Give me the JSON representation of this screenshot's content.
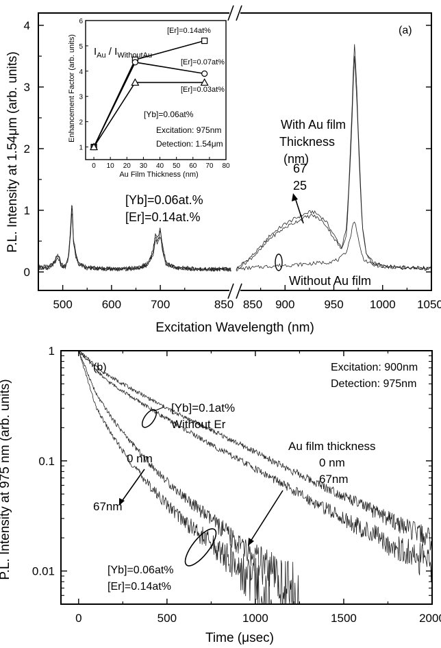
{
  "chart_data": [
    {
      "panel": "(a)",
      "type": "line",
      "xlabel": "Excitation Wavelength (nm)",
      "ylabel": "P.L. Intensity at 1.54μm (arb. units)",
      "xlim_left": [
        450,
        850
      ],
      "xlim_right": [
        850,
        1050
      ],
      "ylim": [
        -0.3,
        4.2
      ],
      "x_ticks": [
        "500",
        "600",
        "700",
        "850",
        "900",
        "950",
        "1000",
        "1050"
      ],
      "y_ticks": [
        "0",
        "1",
        "2",
        "3",
        "4"
      ],
      "series": [
        {
          "name": "67",
          "points_left": [
            [
              450,
              0.1
            ],
            [
              470,
              0.08
            ],
            [
              485,
              0.2
            ],
            [
              490,
              0.3
            ],
            [
              497,
              0.12
            ],
            [
              505,
              0.1
            ],
            [
              512,
              0.28
            ],
            [
              516,
              0.7
            ],
            [
              519,
              1.2
            ],
            [
              522,
              0.55
            ],
            [
              527,
              0.3
            ],
            [
              532,
              0.16
            ],
            [
              550,
              0.08
            ],
            [
              580,
              0.06
            ],
            [
              620,
              0.05
            ],
            [
              660,
              0.08
            ],
            [
              675,
              0.15
            ],
            [
              685,
              0.35
            ],
            [
              690,
              0.62
            ],
            [
              695,
              0.55
            ],
            [
              700,
              0.7
            ],
            [
              705,
              0.4
            ],
            [
              712,
              0.15
            ],
            [
              730,
              0.08
            ],
            [
              760,
              0.06
            ],
            [
              790,
              0.05
            ],
            [
              820,
              0.05
            ],
            [
              845,
              0.05
            ]
          ],
          "points_right": [
            [
              850,
              0.05
            ],
            [
              855,
              0.12
            ],
            [
              862,
              0.2
            ],
            [
              875,
              0.4
            ],
            [
              885,
              0.6
            ],
            [
              900,
              0.78
            ],
            [
              912,
              0.88
            ],
            [
              920,
              0.94
            ],
            [
              928,
              0.98
            ],
            [
              935,
              0.92
            ],
            [
              942,
              0.82
            ],
            [
              950,
              0.6
            ],
            [
              958,
              0.4
            ],
            [
              963,
              0.7
            ],
            [
              966,
              1.6
            ],
            [
              969,
              2.8
            ],
            [
              971,
              3.78
            ],
            [
              973,
              3.2
            ],
            [
              976,
              1.9
            ],
            [
              979,
              0.8
            ],
            [
              983,
              0.3
            ],
            [
              990,
              0.15
            ],
            [
              1000,
              0.1
            ],
            [
              1025,
              0.07
            ],
            [
              1050,
              0.06
            ]
          ]
        },
        {
          "name": "25",
          "points_left": [
            [
              450,
              0.08
            ],
            [
              470,
              0.06
            ],
            [
              485,
              0.18
            ],
            [
              490,
              0.28
            ],
            [
              497,
              0.1
            ],
            [
              505,
              0.08
            ],
            [
              512,
              0.26
            ],
            [
              516,
              0.66
            ],
            [
              519,
              1.12
            ],
            [
              522,
              0.5
            ],
            [
              527,
              0.28
            ],
            [
              532,
              0.14
            ],
            [
              550,
              0.07
            ],
            [
              580,
              0.05
            ],
            [
              620,
              0.04
            ],
            [
              660,
              0.07
            ],
            [
              675,
              0.14
            ],
            [
              685,
              0.32
            ],
            [
              690,
              0.58
            ],
            [
              695,
              0.5
            ],
            [
              700,
              0.66
            ],
            [
              705,
              0.36
            ],
            [
              712,
              0.14
            ],
            [
              730,
              0.07
            ],
            [
              760,
              0.05
            ],
            [
              790,
              0.04
            ],
            [
              820,
              0.04
            ],
            [
              845,
              0.04
            ]
          ],
          "points_right": [
            [
              850,
              0.04
            ],
            [
              855,
              0.1
            ],
            [
              862,
              0.18
            ],
            [
              875,
              0.36
            ],
            [
              885,
              0.55
            ],
            [
              900,
              0.72
            ],
            [
              912,
              0.82
            ],
            [
              920,
              0.88
            ],
            [
              928,
              0.92
            ],
            [
              935,
              0.86
            ],
            [
              942,
              0.76
            ],
            [
              950,
              0.55
            ],
            [
              958,
              0.36
            ],
            [
              963,
              0.62
            ],
            [
              966,
              1.5
            ],
            [
              969,
              2.6
            ],
            [
              971,
              3.55
            ],
            [
              973,
              3.0
            ],
            [
              976,
              1.8
            ],
            [
              979,
              0.75
            ],
            [
              983,
              0.28
            ],
            [
              990,
              0.14
            ],
            [
              1000,
              0.09
            ],
            [
              1025,
              0.06
            ],
            [
              1050,
              0.05
            ]
          ]
        },
        {
          "name": "Without Au film",
          "points_left": [
            [
              450,
              0.07
            ],
            [
              470,
              0.05
            ],
            [
              485,
              0.16
            ],
            [
              490,
              0.24
            ],
            [
              497,
              0.09
            ],
            [
              505,
              0.07
            ],
            [
              512,
              0.22
            ],
            [
              516,
              0.6
            ],
            [
              519,
              1.05
            ],
            [
              522,
              0.46
            ],
            [
              527,
              0.24
            ],
            [
              532,
              0.12
            ],
            [
              550,
              0.06
            ],
            [
              580,
              0.05
            ],
            [
              620,
              0.04
            ],
            [
              660,
              0.06
            ],
            [
              675,
              0.12
            ],
            [
              685,
              0.28
            ],
            [
              690,
              0.52
            ],
            [
              695,
              0.46
            ],
            [
              700,
              0.6
            ],
            [
              705,
              0.32
            ],
            [
              712,
              0.12
            ],
            [
              730,
              0.06
            ],
            [
              760,
              0.05
            ],
            [
              790,
              0.04
            ],
            [
              820,
              0.04
            ],
            [
              845,
              0.04
            ]
          ],
          "points_right": [
            [
              850,
              0.04
            ],
            [
              860,
              0.06
            ],
            [
              875,
              0.08
            ],
            [
              890,
              0.1
            ],
            [
              900,
              0.11
            ],
            [
              915,
              0.12
            ],
            [
              930,
              0.14
            ],
            [
              945,
              0.16
            ],
            [
              955,
              0.2
            ],
            [
              962,
              0.3
            ],
            [
              966,
              0.5
            ],
            [
              969,
              0.72
            ],
            [
              971,
              0.85
            ],
            [
              973,
              0.72
            ],
            [
              976,
              0.45
            ],
            [
              980,
              0.22
            ],
            [
              988,
              0.12
            ],
            [
              1000,
              0.09
            ],
            [
              1025,
              0.07
            ],
            [
              1050,
              0.06
            ]
          ]
        }
      ],
      "annotations": [
        "(a)",
        "With Au film",
        "Thickness",
        "(nm)",
        "67",
        "25",
        "[Yb]=0.06at.%",
        "[Er]=0.14at.%",
        "Without Au film"
      ],
      "inset": {
        "type": "line",
        "title_main": "I",
        "title_sub1": "Au",
        "title_sep": " / I",
        "title_sub2": "WithoutAu",
        "xlabel": "Au Film Thickness (nm)",
        "ylabel": "Enhancement Factor (arb. units)",
        "xlim": [
          -5,
          80
        ],
        "ylim": [
          0.5,
          6
        ],
        "x_ticks": [
          "0",
          "10",
          "20",
          "30",
          "40",
          "50",
          "60",
          "70",
          "80"
        ],
        "y_ticks": [
          "1",
          "2",
          "3",
          "4",
          "5",
          "6"
        ],
        "x": [
          0,
          25,
          67
        ],
        "series": [
          {
            "name": "[Er]=0.14at%",
            "marker": "square",
            "values": [
              1.0,
              4.45,
              5.2
            ]
          },
          {
            "name": "[Er]=0.07at%",
            "marker": "circle",
            "values": [
              1.0,
              4.35,
              3.9
            ]
          },
          {
            "name": "[Er]=0.03at%",
            "marker": "triangle",
            "values": [
              1.0,
              3.55,
              3.55
            ]
          }
        ],
        "annotations": [
          "[Yb]=0.06at%",
          "Excitation: 975nm",
          "Detection: 1.54μm"
        ]
      }
    },
    {
      "panel": "(b)",
      "type": "line",
      "xlabel": "Time (μsec)",
      "ylabel": "P.L. Intensity at 975 nm (arb. units)",
      "xlim": [
        -100,
        2000
      ],
      "ylim": [
        0.005,
        1
      ],
      "yscale": "log",
      "x_ticks": [
        "0",
        "500",
        "1000",
        "1500",
        "2000"
      ],
      "y_ticks": [
        "0.01",
        "0.1",
        "1"
      ],
      "series": [
        {
          "name": "[Yb]=0.1at% Without Er, 0 nm",
          "points": [
            [
              0,
              1.0
            ],
            [
              150,
              0.62
            ],
            [
              300,
              0.45
            ],
            [
              500,
              0.3
            ],
            [
              750,
              0.19
            ],
            [
              1000,
              0.12
            ],
            [
              1250,
              0.075
            ],
            [
              1500,
              0.048
            ],
            [
              1750,
              0.03
            ],
            [
              2000,
              0.019
            ]
          ]
        },
        {
          "name": "[Yb]=0.1at% Without Er, 67nm",
          "points": [
            [
              0,
              1.0
            ],
            [
              150,
              0.55
            ],
            [
              300,
              0.38
            ],
            [
              500,
              0.24
            ],
            [
              750,
              0.14
            ],
            [
              1000,
              0.085
            ],
            [
              1250,
              0.05
            ],
            [
              1500,
              0.03
            ],
            [
              1750,
              0.018
            ],
            [
              2000,
              0.011
            ]
          ]
        },
        {
          "name": "[Yb]=0.06at% [Er]=0.14at%, 0 nm",
          "points": [
            [
              0,
              1.0
            ],
            [
              100,
              0.4
            ],
            [
              200,
              0.23
            ],
            [
              300,
              0.145
            ],
            [
              400,
              0.095
            ],
            [
              500,
              0.065
            ],
            [
              650,
              0.04
            ],
            [
              800,
              0.025
            ],
            [
              950,
              0.015
            ],
            [
              1100,
              0.009
            ],
            [
              1250,
              0.005
            ]
          ]
        },
        {
          "name": "[Yb]=0.06at% [Er]=0.14at%, 67nm",
          "points": [
            [
              0,
              1.0
            ],
            [
              100,
              0.3
            ],
            [
              200,
              0.16
            ],
            [
              300,
              0.095
            ],
            [
              400,
              0.06
            ],
            [
              500,
              0.04
            ],
            [
              650,
              0.024
            ],
            [
              800,
              0.015
            ],
            [
              950,
              0.009
            ],
            [
              1100,
              0.005
            ]
          ]
        }
      ],
      "annotations": [
        "(b)",
        "Excitation: 900nm",
        "Detection: 975nm",
        "[Yb]=0.1at%",
        "Without Er",
        "Au film thickness",
        "0 nm",
        "67nm",
        "0 nm",
        "67nm",
        "[Yb]=0.06at%",
        "[Er]=0.14at%"
      ]
    }
  ]
}
